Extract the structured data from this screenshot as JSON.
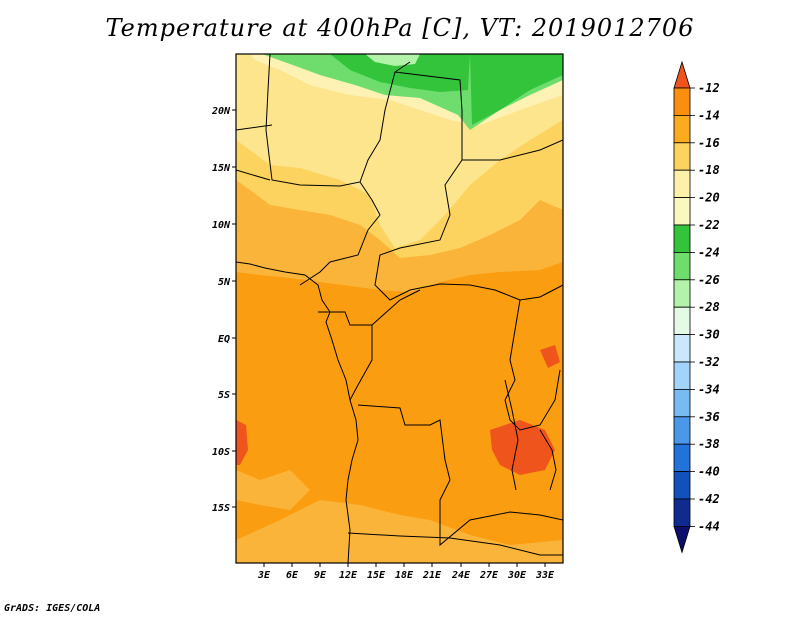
{
  "title": "Temperature at 400hPa [C], VT: 2019012706",
  "credit": "GrADS: IGES/COLA",
  "lat_labels": [
    "20N",
    "15N",
    "10N",
    "5N",
    "EQ",
    "5S",
    "10S",
    "15S"
  ],
  "lon_labels": [
    "3E",
    "6E",
    "9E",
    "12E",
    "15E",
    "18E",
    "21E",
    "24E",
    "27E",
    "30E",
    "33E"
  ],
  "colorbar": {
    "labels": [
      "-12",
      "-14",
      "-16",
      "-18",
      "-20",
      "-22",
      "-24",
      "-26",
      "-28",
      "-30",
      "-32",
      "-34",
      "-36",
      "-38",
      "-40",
      "-42",
      "-44"
    ],
    "colors": [
      "#f0541d",
      "#fa8f0f",
      "#fbab1e",
      "#fcd35e",
      "#fdf0a8",
      "#f8f8bf",
      "#34c43c",
      "#6edd6e",
      "#b2f2a9",
      "#e3fbe6",
      "#c9e8fb",
      "#a2d3fa",
      "#79baf3",
      "#4b97e8",
      "#2372d9",
      "#1250bb",
      "#0f2b8f",
      "#0b0e6b"
    ]
  }
}
